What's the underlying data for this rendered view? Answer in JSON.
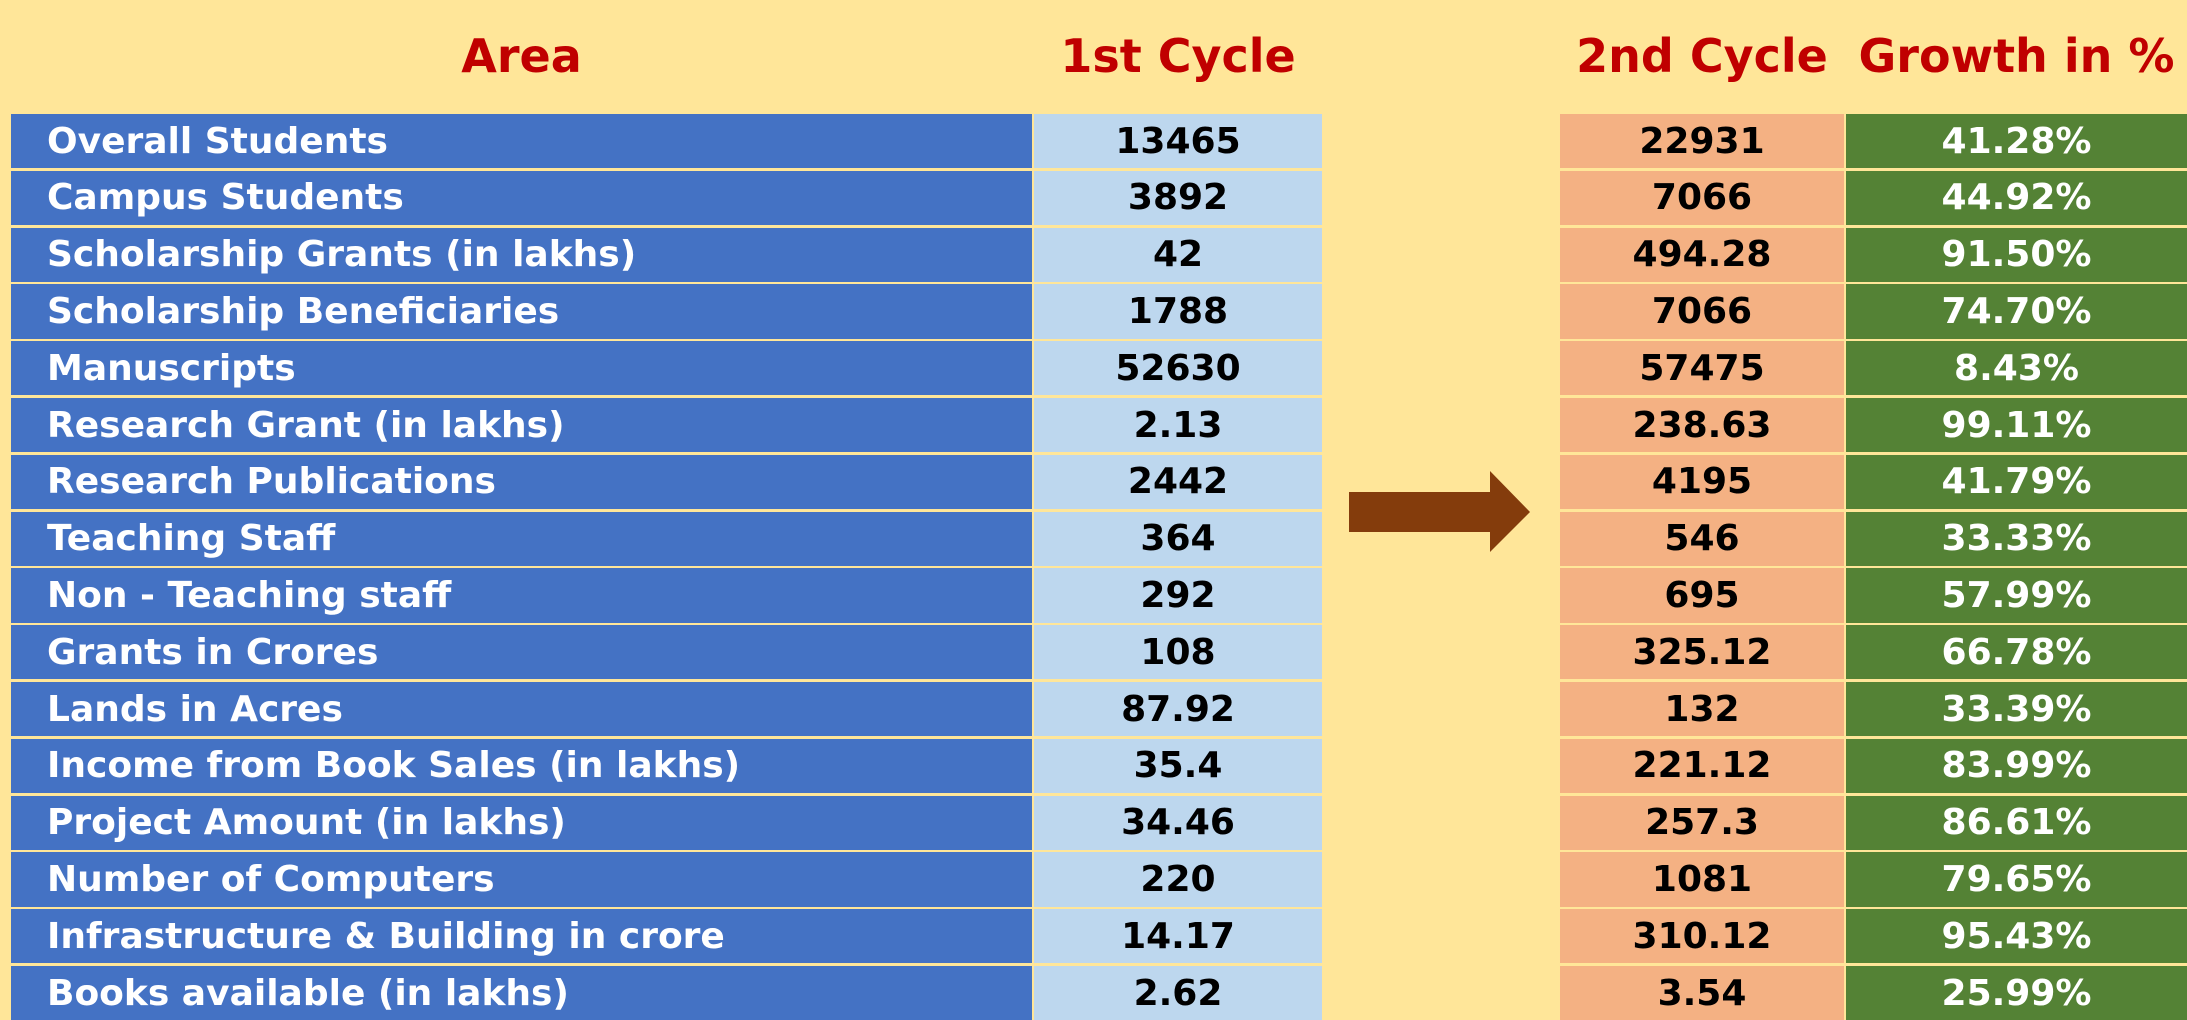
{
  "table": {
    "header": [
      "Area",
      "1st Cycle",
      "2nd Cycle",
      "Growth in %"
    ],
    "rows": [
      [
        "Overall Students",
        "13465",
        "22931",
        "41.28%"
      ],
      [
        "Campus Students",
        "3892",
        "7066",
        "44.92%"
      ],
      [
        "Scholarship Grants (in lakhs)",
        "42",
        "494.28",
        "91.50%"
      ],
      [
        "Scholarship Beneficiaries",
        "1788",
        "7066",
        "74.70%"
      ],
      [
        "Manuscripts",
        "52630",
        "57475",
        "8.43%"
      ],
      [
        "Research Grant (in lakhs)",
        "2.13",
        "238.63",
        "99.11%"
      ],
      [
        "Research Publications",
        "2442",
        "4195",
        "41.79%"
      ],
      [
        "Teaching Staff",
        "364",
        "546",
        "33.33%"
      ],
      [
        "Non - Teaching staff",
        "292",
        "695",
        "57.99%"
      ],
      [
        "Grants in Crores",
        "108",
        "325.12",
        "66.78%"
      ],
      [
        "Lands in Acres",
        "87.92",
        "132",
        "33.39%"
      ],
      [
        "Income from Book Sales (in lakhs)",
        "35.4",
        "221.12",
        "83.99%"
      ],
      [
        "Project Amount (in lakhs)",
        "34.46",
        "257.3",
        "86.61%"
      ],
      [
        "Number of Computers",
        "220",
        "1081",
        "79.65%"
      ],
      [
        "Infrastructure & Building in crore",
        "14.17",
        "310.12",
        "95.43%"
      ],
      [
        "Books available (in lakhs)",
        "2.62",
        "3.54",
        "25.99%"
      ]
    ]
  }
}
